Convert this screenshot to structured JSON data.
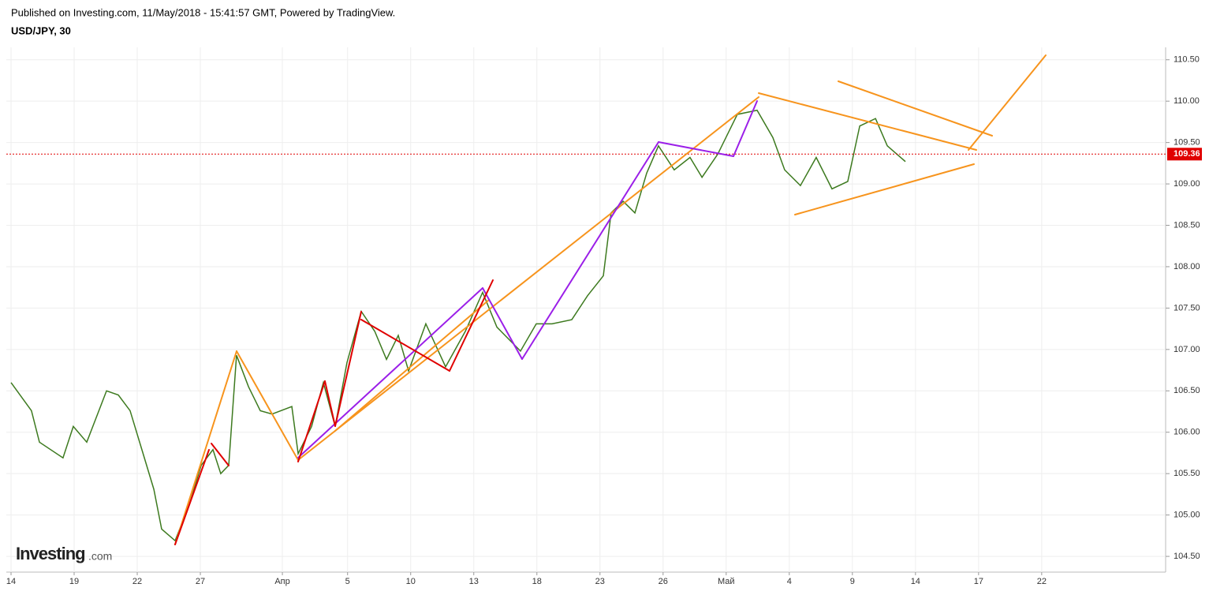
{
  "header": {
    "published": "Published on Investing.com, 11/May/2018 - 15:41:57 GMT, Powered by TradingView.",
    "symbol": "USD/JPY, 30"
  },
  "logo": {
    "brand": "Investing",
    "suffix": ".com"
  },
  "chart_data": {
    "type": "line",
    "color": "#3d7a1f",
    "x": [
      0,
      0.97,
      1.35,
      2.47,
      2.96,
      3.6,
      4.54,
      5.1,
      5.66,
      6.22,
      6.79,
      7.16,
      7.8,
      8.47,
      9.04,
      9.6,
      9.97,
      10.35,
      10.72,
      11.29,
      11.85,
      12.41,
      13.35,
      13.65,
      14.29,
      14.85,
      15.41,
      15.97,
      16.65,
      17.29,
      17.85,
      18.41,
      18.9,
      19.72,
      20.66,
      21.6,
      22.42,
      23.1,
      24.22,
      24.97,
      25.72,
      26.66,
      27.41,
      28.16,
      28.53,
      29.1,
      29.66,
      30.22,
      30.78,
      31.53,
      32.28,
      32.85,
      33.6,
      34.53,
      35.47,
      36.22,
      36.78,
      37.53,
      38.28,
      39.03,
      39.78,
      40.35,
      41.1,
      41.66,
      42.52
    ],
    "values": [
      106.6,
      106.26,
      105.88,
      105.69,
      106.07,
      105.88,
      106.5,
      106.45,
      106.26,
      105.79,
      105.31,
      104.83,
      104.69,
      105.12,
      105.6,
      105.79,
      105.5,
      105.6,
      106.93,
      106.55,
      106.26,
      106.22,
      106.31,
      105.74,
      106.07,
      106.6,
      106.07,
      106.84,
      107.46,
      107.22,
      106.88,
      107.17,
      106.74,
      107.31,
      106.79,
      107.22,
      107.69,
      107.27,
      106.98,
      107.31,
      107.31,
      107.36,
      107.65,
      107.89,
      108.65,
      108.79,
      108.65,
      109.13,
      109.46,
      109.17,
      109.32,
      109.08,
      109.36,
      109.84,
      109.89,
      109.56,
      109.17,
      108.98,
      109.32,
      108.94,
      109.03,
      109.7,
      109.79,
      109.46,
      109.27
    ],
    "xlim": [
      -0.225,
      54.78
    ],
    "xticks": [
      {
        "value": 0,
        "label": "14"
      },
      {
        "value": 3,
        "label": "19"
      },
      {
        "value": 6,
        "label": "22"
      },
      {
        "value": 9,
        "label": "27"
      },
      {
        "value": 12.9,
        "label": "Апр"
      },
      {
        "value": 16,
        "label": "5"
      },
      {
        "value": 19,
        "label": "10"
      },
      {
        "value": 22,
        "label": "13"
      },
      {
        "value": 25,
        "label": "18"
      },
      {
        "value": 28,
        "label": "23"
      },
      {
        "value": 31,
        "label": "26"
      },
      {
        "value": 34,
        "label": "Май"
      },
      {
        "value": 37,
        "label": "4"
      },
      {
        "value": 40,
        "label": "9"
      },
      {
        "value": 43,
        "label": "14"
      },
      {
        "value": 46,
        "label": "17"
      },
      {
        "value": 49,
        "label": "22"
      }
    ],
    "ylim": [
      104.31,
      110.65
    ],
    "yticks": [
      {
        "value": 104.5,
        "label": "104.50"
      },
      {
        "value": 105,
        "label": "105.00"
      },
      {
        "value": 105.5,
        "label": "105.50"
      },
      {
        "value": 106,
        "label": "106.00"
      },
      {
        "value": 106.5,
        "label": "106.50"
      },
      {
        "value": 107,
        "label": "107.00"
      },
      {
        "value": 107.5,
        "label": "107.50"
      },
      {
        "value": 108,
        "label": "108.00"
      },
      {
        "value": 108.5,
        "label": "108.50"
      },
      {
        "value": 109,
        "label": "109.00"
      },
      {
        "value": 109.5,
        "label": "109.50"
      },
      {
        "value": 110,
        "label": "110.00"
      },
      {
        "value": 110.5,
        "label": "110.50"
      }
    ],
    "grid": true,
    "last_price": {
      "value": 109.36,
      "label": "109.36",
      "color": "#e00000"
    }
  }
}
